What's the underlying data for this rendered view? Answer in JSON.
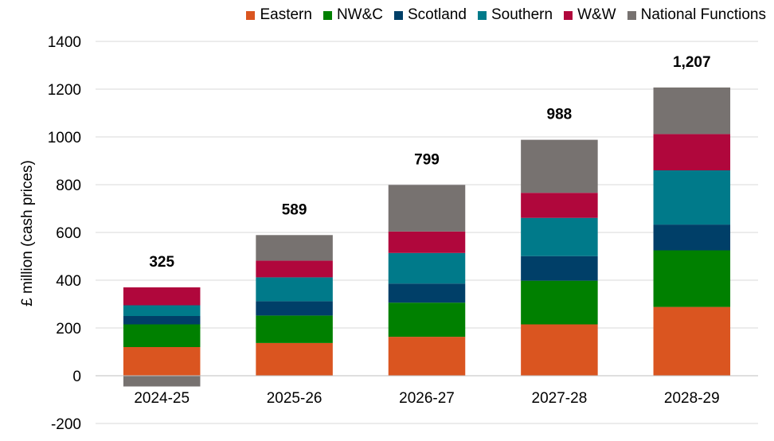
{
  "chart_data": {
    "type": "bar",
    "stacked": true,
    "title": "",
    "xlabel": "",
    "ylabel": "£ million (cash prices)",
    "ylim": [
      -200,
      1400
    ],
    "yticks": [
      -200,
      0,
      200,
      400,
      600,
      800,
      1000,
      1200,
      1400
    ],
    "ytick_labels": [
      "-200",
      "0",
      "200",
      "400",
      "600",
      "800",
      "1000",
      "1200",
      "1400"
    ],
    "grid": true,
    "legend_position": "top-right",
    "categories": [
      "2024-25",
      "2025-26",
      "2026-27",
      "2027-28",
      "2028-29"
    ],
    "series": [
      {
        "name": "Eastern",
        "color": "#DA5520",
        "values": [
          120,
          137,
          163,
          215,
          288
        ]
      },
      {
        "name": "NW&C",
        "color": "#008000",
        "values": [
          95,
          115,
          143,
          183,
          237
        ]
      },
      {
        "name": "Scotland",
        "color": "#003F68",
        "values": [
          35,
          60,
          80,
          103,
          108
        ]
      },
      {
        "name": "Southern",
        "color": "#007A8A",
        "values": [
          45,
          100,
          128,
          160,
          227
        ]
      },
      {
        "name": "W&W",
        "color": "#B0073C",
        "values": [
          75,
          70,
          90,
          105,
          152
        ]
      },
      {
        "name": "National Functions",
        "color": "#777270",
        "values": [
          -45,
          107,
          195,
          222,
          195
        ]
      }
    ],
    "totals": [
      "325",
      "589",
      "799",
      "988",
      "1,207"
    ]
  }
}
